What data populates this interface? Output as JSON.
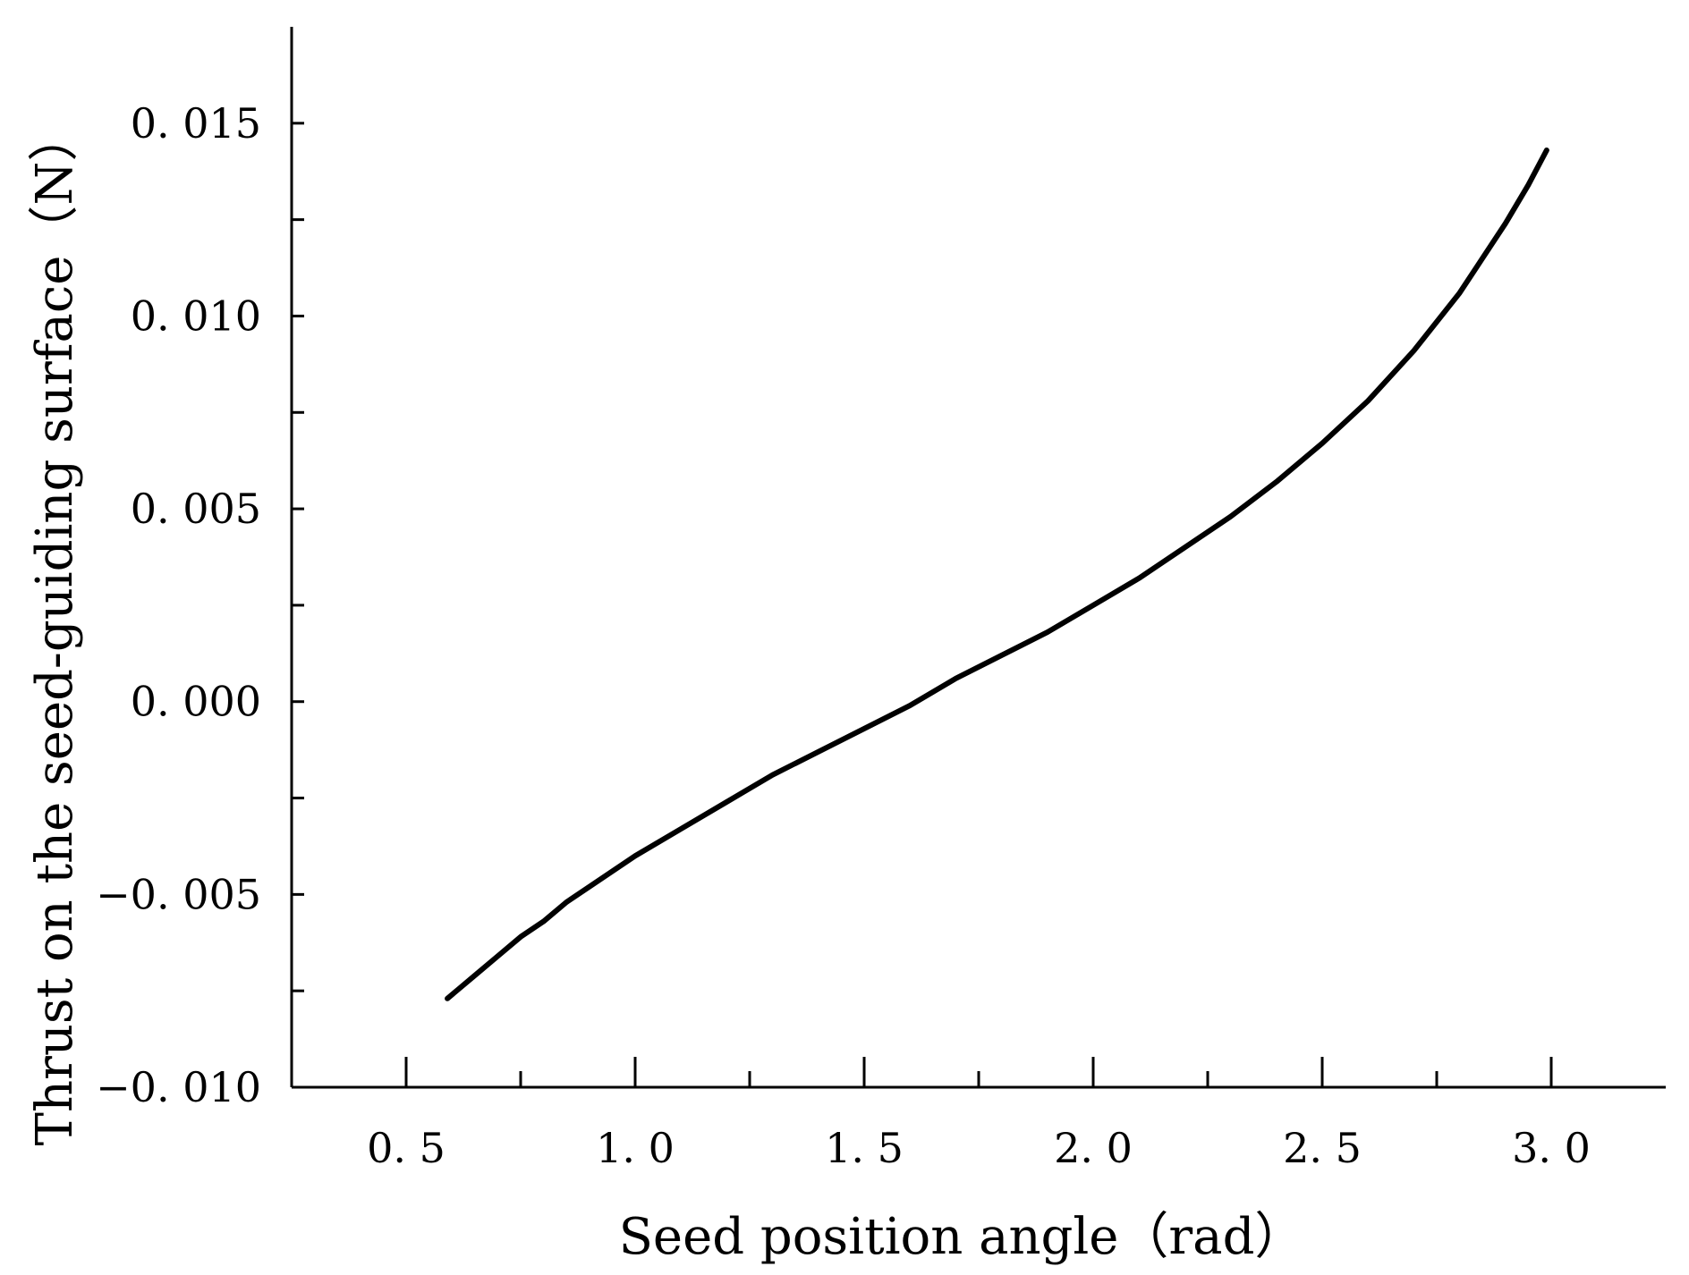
{
  "chart_data": {
    "type": "line",
    "title": "",
    "xlabel": "Seed position angle（rad）",
    "ylabel": "Thrust on the seed-guiding surface（N）",
    "xlim": [
      0.25,
      3.25
    ],
    "ylim": [
      -0.01,
      0.0175
    ],
    "x_ticks": [
      0.5,
      1.0,
      1.5,
      2.0,
      2.5,
      3.0
    ],
    "x_tick_labels": [
      "0. 5",
      "1. 0",
      "1. 5",
      "2. 0",
      "2. 5",
      "3. 0"
    ],
    "x_minor_ticks": [
      0.75,
      1.25,
      1.75,
      2.25,
      2.75
    ],
    "y_ticks": [
      -0.01,
      -0.005,
      0.0,
      0.005,
      0.01,
      0.015
    ],
    "y_tick_labels": [
      "−0. 010",
      "−0. 005",
      "0. 000",
      "0. 005",
      "0. 010",
      "0. 015"
    ],
    "y_minor_ticks": [
      -0.0075,
      -0.0025,
      0.0025,
      0.0075,
      0.0125
    ],
    "grid": false,
    "legend": "none",
    "line_color": "#000000",
    "series": [
      {
        "x": [
          0.59,
          0.65,
          0.7,
          0.75,
          0.8,
          0.85,
          0.9,
          0.95,
          1.0,
          1.1,
          1.2,
          1.3,
          1.4,
          1.5,
          1.6,
          1.7,
          1.8,
          1.9,
          2.0,
          2.1,
          2.2,
          2.3,
          2.4,
          2.5,
          2.6,
          2.7,
          2.8,
          2.85,
          2.9,
          2.95,
          2.99
        ],
        "values": [
          -0.0077,
          -0.0071,
          -0.0066,
          -0.0061,
          -0.0057,
          -0.0052,
          -0.0048,
          -0.0044,
          -0.004,
          -0.0033,
          -0.0026,
          -0.0019,
          -0.0013,
          -0.0007,
          -0.0001,
          0.0006,
          0.0012,
          0.0018,
          0.0025,
          0.0032,
          0.004,
          0.0048,
          0.0057,
          0.0067,
          0.0078,
          0.0091,
          0.0106,
          0.0115,
          0.0124,
          0.0134,
          0.0143
        ]
      }
    ]
  }
}
